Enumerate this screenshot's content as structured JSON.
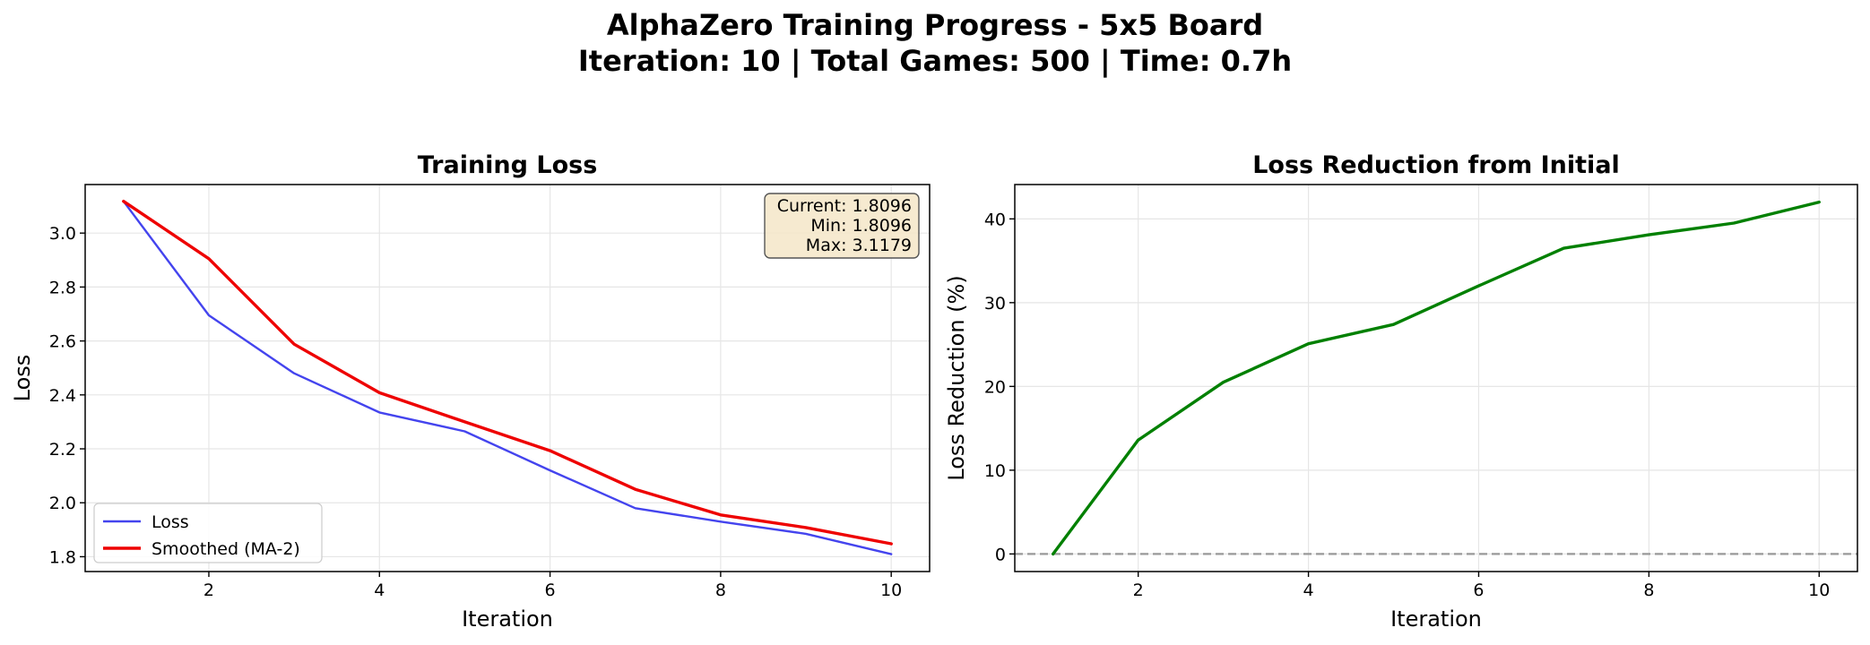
{
  "figure": {
    "title_line1": "AlphaZero Training Progress - 5x5 Board",
    "title_line2": "Iteration: 10 | Total Games: 500 | Time: 0.7h"
  },
  "chart_data": [
    {
      "type": "line",
      "title": "Training Loss",
      "xlabel": "Iteration",
      "ylabel": "Loss",
      "xlim": [
        0.55,
        10.45
      ],
      "ylim": [
        1.745,
        3.18
      ],
      "xticks": [
        2,
        4,
        6,
        8,
        10
      ],
      "yticks": [
        1.8,
        2.0,
        2.2,
        2.4,
        2.6,
        2.8,
        3.0
      ],
      "ytick_labels": [
        "1.8",
        "2.0",
        "2.2",
        "2.4",
        "2.6",
        "2.8",
        "3.0"
      ],
      "grid": true,
      "legend": "lower-left",
      "series": [
        {
          "name": "Loss",
          "color": "#4444ee",
          "x": [
            1,
            2,
            3,
            4,
            5,
            6,
            7,
            8,
            9,
            10
          ],
          "y": [
            3.1179,
            2.695,
            2.48,
            2.335,
            2.265,
            2.12,
            1.98,
            1.93,
            1.885,
            1.8096
          ]
        },
        {
          "name": "Smoothed (MA-2)",
          "color": "#ee0000",
          "x": [
            1,
            2,
            3,
            4,
            5,
            6,
            7,
            8,
            9,
            10
          ],
          "y": [
            3.1179,
            2.905,
            2.588,
            2.408,
            2.3,
            2.193,
            2.05,
            1.955,
            1.908,
            1.848
          ]
        }
      ],
      "stats_box": {
        "current": "Current: 1.8096",
        "min": "Min: 1.8096",
        "max": "Max: 3.1179",
        "placement": "top-right",
        "facecolor": "#f5e6c8"
      }
    },
    {
      "type": "line",
      "title": "Loss Reduction from Initial",
      "xlabel": "Iteration",
      "ylabel": "Loss Reduction (%)",
      "xlim": [
        0.55,
        10.45
      ],
      "ylim": [
        -2.1,
        44.1
      ],
      "xticks": [
        2,
        4,
        6,
        8,
        10
      ],
      "yticks": [
        0,
        10,
        20,
        30,
        40
      ],
      "ytick_labels": [
        "0",
        "10",
        "20",
        "30",
        "40"
      ],
      "grid": true,
      "reference_line": {
        "y": 0,
        "style": "dashed",
        "color": "#999999"
      },
      "series": [
        {
          "color": "#008000",
          "x": [
            1,
            2,
            3,
            4,
            5,
            6,
            7,
            8,
            9,
            10
          ],
          "y": [
            0,
            13.6,
            20.5,
            25.1,
            27.4,
            32.0,
            36.5,
            38.1,
            39.5,
            42.0
          ]
        }
      ]
    }
  ]
}
